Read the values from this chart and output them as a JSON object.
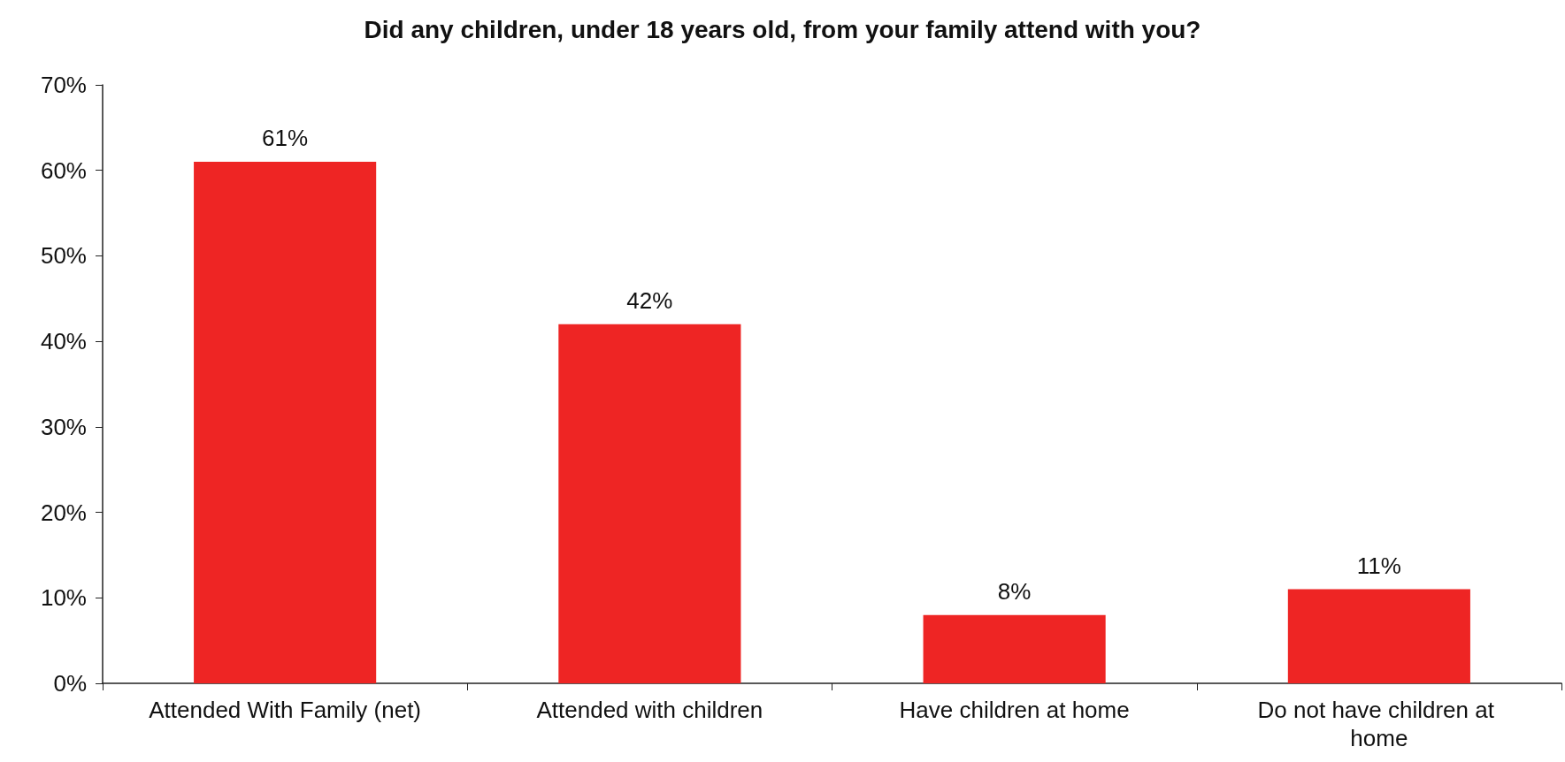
{
  "chart_data": {
    "type": "bar",
    "title": "Did any children, under 18 years old, from your family attend with you?",
    "categories": [
      "Attended With Family (net)",
      "Attended with children",
      "Have children at home",
      "Do not have children at home"
    ],
    "values": [
      61,
      42,
      8,
      11
    ],
    "value_labels": [
      "61%",
      "42%",
      "8%",
      "11%"
    ],
    "color": "#ee2524",
    "ylim": [
      0,
      70
    ],
    "yticks": [
      {
        "value": 0,
        "label": "0%"
      },
      {
        "value": 10,
        "label": "10%"
      },
      {
        "value": 20,
        "label": "20%"
      },
      {
        "value": 30,
        "label": "30%"
      },
      {
        "value": 40,
        "label": "40%"
      },
      {
        "value": 50,
        "label": "50%"
      },
      {
        "value": 60,
        "label": "60%"
      },
      {
        "value": 70,
        "label": "70%"
      }
    ],
    "grid": false
  }
}
